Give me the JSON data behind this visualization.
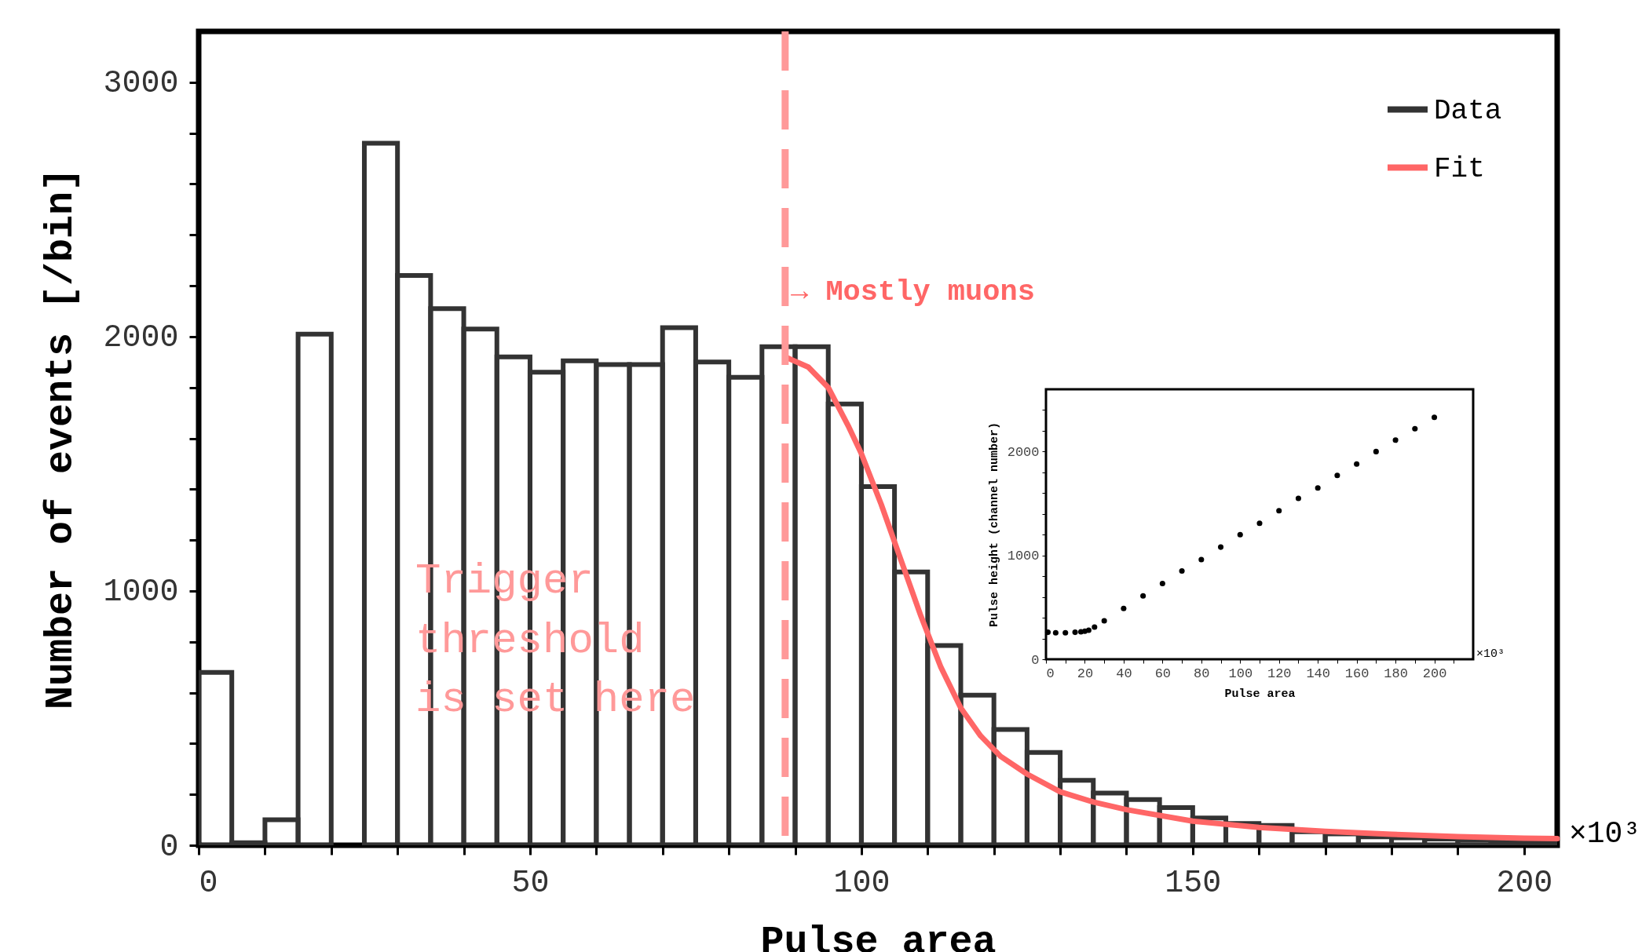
{
  "chart_data": [
    {
      "type": "histogram",
      "xlabel": "Pulse area",
      "ylabel": "Number of events [/bin]",
      "bins": [
        0,
        5,
        10,
        15,
        20,
        25,
        30,
        35,
        40,
        45,
        50,
        55,
        60,
        65,
        70,
        75,
        80,
        85,
        90,
        95,
        100,
        105,
        110,
        115,
        120,
        125,
        130,
        135,
        140,
        145,
        150,
        155,
        160,
        165,
        170,
        175,
        180,
        185,
        190,
        195,
        200,
        205
      ],
      "series": [
        {
          "name": "Data",
          "color": "#333333",
          "values": [
            680,
            10,
            100,
            2010,
            null,
            2760,
            2240,
            2110,
            2030,
            1920,
            1860,
            1905,
            1890,
            1890,
            2035,
            1900,
            1840,
            1960,
            1960,
            1735,
            1410,
            1075,
            785,
            590,
            455,
            365,
            255,
            205,
            180,
            148,
            107,
            86,
            78,
            53,
            45,
            33,
            29,
            25,
            20,
            16,
            12
          ]
        },
        {
          "name": "Fit",
          "type": "line",
          "color": "#ff6666",
          "x": [
            88.5,
            92,
            95,
            98,
            100,
            103,
            106,
            109,
            112,
            115,
            118,
            121,
            125,
            130,
            135,
            140,
            150,
            160,
            170,
            180,
            190,
            200,
            205
          ],
          "values": [
            1920,
            1880,
            1800,
            1650,
            1540,
            1340,
            1120,
            900,
            700,
            540,
            430,
            350,
            280,
            210,
            170,
            140,
            95,
            70,
            55,
            43,
            34,
            28,
            26
          ]
        }
      ],
      "xlim": [
        0,
        205
      ],
      "ylim": [
        0,
        3200
      ],
      "xticks": [
        0,
        {
          "value": 10,
          "label": null
        },
        {
          "value": 20,
          "label": null
        },
        {
          "value": 30,
          "label": null
        },
        {
          "value": 40,
          "label": null
        },
        50,
        {
          "value": 60,
          "label": null
        },
        {
          "value": 70,
          "label": null
        },
        {
          "value": 80,
          "label": null
        },
        {
          "value": 90,
          "label": null
        },
        100,
        {
          "value": 110,
          "label": null
        },
        {
          "value": 120,
          "label": null
        },
        {
          "value": 130,
          "label": null
        },
        {
          "value": 140,
          "label": null
        },
        150,
        {
          "value": 160,
          "label": null
        },
        {
          "value": 170,
          "label": null
        },
        {
          "value": 180,
          "label": null
        },
        {
          "value": 190,
          "label": null
        },
        200
      ],
      "yticks": [
        0,
        {
          "value": 200,
          "label": null
        },
        {
          "value": 400,
          "label": null
        },
        {
          "value": 600,
          "label": null
        },
        {
          "value": 800,
          "label": null
        },
        1000,
        {
          "value": 1200,
          "label": null
        },
        {
          "value": 1400,
          "label": null
        },
        {
          "value": 1600,
          "label": null
        },
        {
          "value": 1800,
          "label": null
        },
        2000,
        {
          "value": 2200,
          "label": null
        },
        {
          "value": 2400,
          "label": null
        },
        {
          "value": 2600,
          "label": null
        },
        {
          "value": 2800,
          "label": null
        },
        3000
      ],
      "ref_lines": [
        {
          "axis": "x",
          "value": 88.5,
          "color": "#ff9999",
          "line_style": "dashed"
        }
      ],
      "annotations": [
        "→ Mostly muons",
        "Trigger\nthreshold\nis set here",
        "×10³"
      ],
      "legend": "top right",
      "grid": false
    },
    {
      "type": "scatter",
      "xlabel": "Pulse area",
      "ylabel": "Pulse height (channel number)",
      "series": [
        {
          "color": "#000000",
          "x": [
            1,
            5,
            10,
            15,
            18,
            20,
            22,
            25,
            30,
            40,
            50,
            60,
            70,
            80,
            90,
            100,
            110,
            120,
            130,
            140,
            150,
            160,
            170,
            180,
            190,
            200
          ],
          "values": [
            260,
            255,
            255,
            260,
            265,
            270,
            280,
            310,
            370,
            490,
            610,
            730,
            850,
            960,
            1080,
            1200,
            1310,
            1430,
            1550,
            1650,
            1770,
            1880,
            2000,
            2110,
            2220,
            2330
          ]
        }
      ],
      "xlim": [
        0,
        220
      ],
      "ylim": [
        0,
        2600
      ],
      "xticks": [
        0,
        {
          "value": 10,
          "label": null
        },
        20,
        {
          "value": 30,
          "label": null
        },
        40,
        {
          "value": 50,
          "label": null
        },
        60,
        {
          "value": 70,
          "label": null
        },
        80,
        {
          "value": 90,
          "label": null
        },
        100,
        {
          "value": 110,
          "label": null
        },
        120,
        {
          "value": 130,
          "label": null
        },
        140,
        {
          "value": 150,
          "label": null
        },
        160,
        {
          "value": 170,
          "label": null
        },
        180,
        {
          "value": 190,
          "label": null
        },
        200,
        {
          "value": 210,
          "label": null
        }
      ],
      "yticks": [
        0,
        {
          "value": 200,
          "label": null
        },
        {
          "value": 400,
          "label": null
        },
        {
          "value": 600,
          "label": null
        },
        {
          "value": 800,
          "label": null
        },
        1000,
        {
          "value": 1200,
          "label": null
        },
        {
          "value": 1400,
          "label": null
        },
        {
          "value": 1600,
          "label": null
        },
        {
          "value": 1800,
          "label": null
        },
        2000,
        {
          "value": 2200,
          "label": null
        },
        {
          "value": 2400,
          "label": null
        }
      ],
      "annotations": [
        "×10³"
      ],
      "marker": "circle",
      "grid": false
    }
  ]
}
